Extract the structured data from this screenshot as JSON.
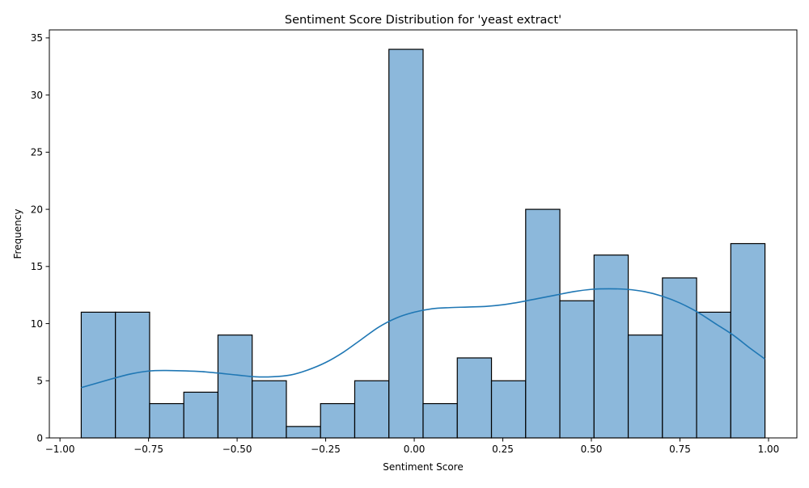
{
  "chart_data": {
    "type": "bar",
    "title": "Sentiment Score Distribution for 'yeast extract'",
    "xlabel": "Sentiment Score",
    "ylabel": "Frequency",
    "xlim": [
      -1.03,
      1.08
    ],
    "ylim": [
      0,
      35.7
    ],
    "xticks": [
      -1.0,
      -0.75,
      -0.5,
      -0.25,
      0.0,
      0.25,
      0.5,
      0.75,
      1.0
    ],
    "xtick_labels": [
      "−1.00",
      "−0.75",
      "−0.50",
      "−0.25",
      "0.00",
      "0.25",
      "0.50",
      "0.75",
      "1.00"
    ],
    "yticks": [
      0,
      5,
      10,
      15,
      20,
      25,
      30,
      35
    ],
    "ytick_labels": [
      "0",
      "5",
      "10",
      "15",
      "20",
      "25",
      "30",
      "35"
    ],
    "grid": false,
    "bin_edges": [
      -0.94,
      -0.8435,
      -0.747,
      -0.6505,
      -0.554,
      -0.4575,
      -0.361,
      -0.2645,
      -0.168,
      -0.0715,
      0.025,
      0.1215,
      0.218,
      0.3145,
      0.411,
      0.5075,
      0.604,
      0.7005,
      0.797,
      0.8935,
      0.99
    ],
    "counts": [
      11,
      11,
      3,
      4,
      9,
      5,
      1,
      3,
      5,
      34,
      3,
      7,
      5,
      20,
      12,
      16,
      9,
      14,
      11,
      17
    ],
    "kde": {
      "x": [
        -0.94,
        -0.85,
        -0.8,
        -0.75,
        -0.7,
        -0.6,
        -0.5,
        -0.45,
        -0.4,
        -0.35,
        -0.3,
        -0.25,
        -0.2,
        -0.15,
        -0.1,
        -0.05,
        0.0,
        0.05,
        0.1,
        0.15,
        0.2,
        0.25,
        0.3,
        0.35,
        0.4,
        0.45,
        0.5,
        0.55,
        0.6,
        0.65,
        0.7,
        0.75,
        0.8,
        0.85,
        0.9,
        0.95,
        0.99
      ],
      "y": [
        4.4,
        5.2,
        5.6,
        5.85,
        5.9,
        5.8,
        5.5,
        5.35,
        5.35,
        5.5,
        5.95,
        6.6,
        7.5,
        8.6,
        9.7,
        10.5,
        11.0,
        11.3,
        11.4,
        11.45,
        11.5,
        11.65,
        11.9,
        12.2,
        12.5,
        12.8,
        13.0,
        13.05,
        13.0,
        12.8,
        12.4,
        11.8,
        11.0,
        10.0,
        9.0,
        7.8,
        6.9
      ]
    },
    "colors": {
      "bar_fill": "#8cb8db",
      "bar_edge": "#000000",
      "kde_line": "#1f77b4"
    }
  }
}
